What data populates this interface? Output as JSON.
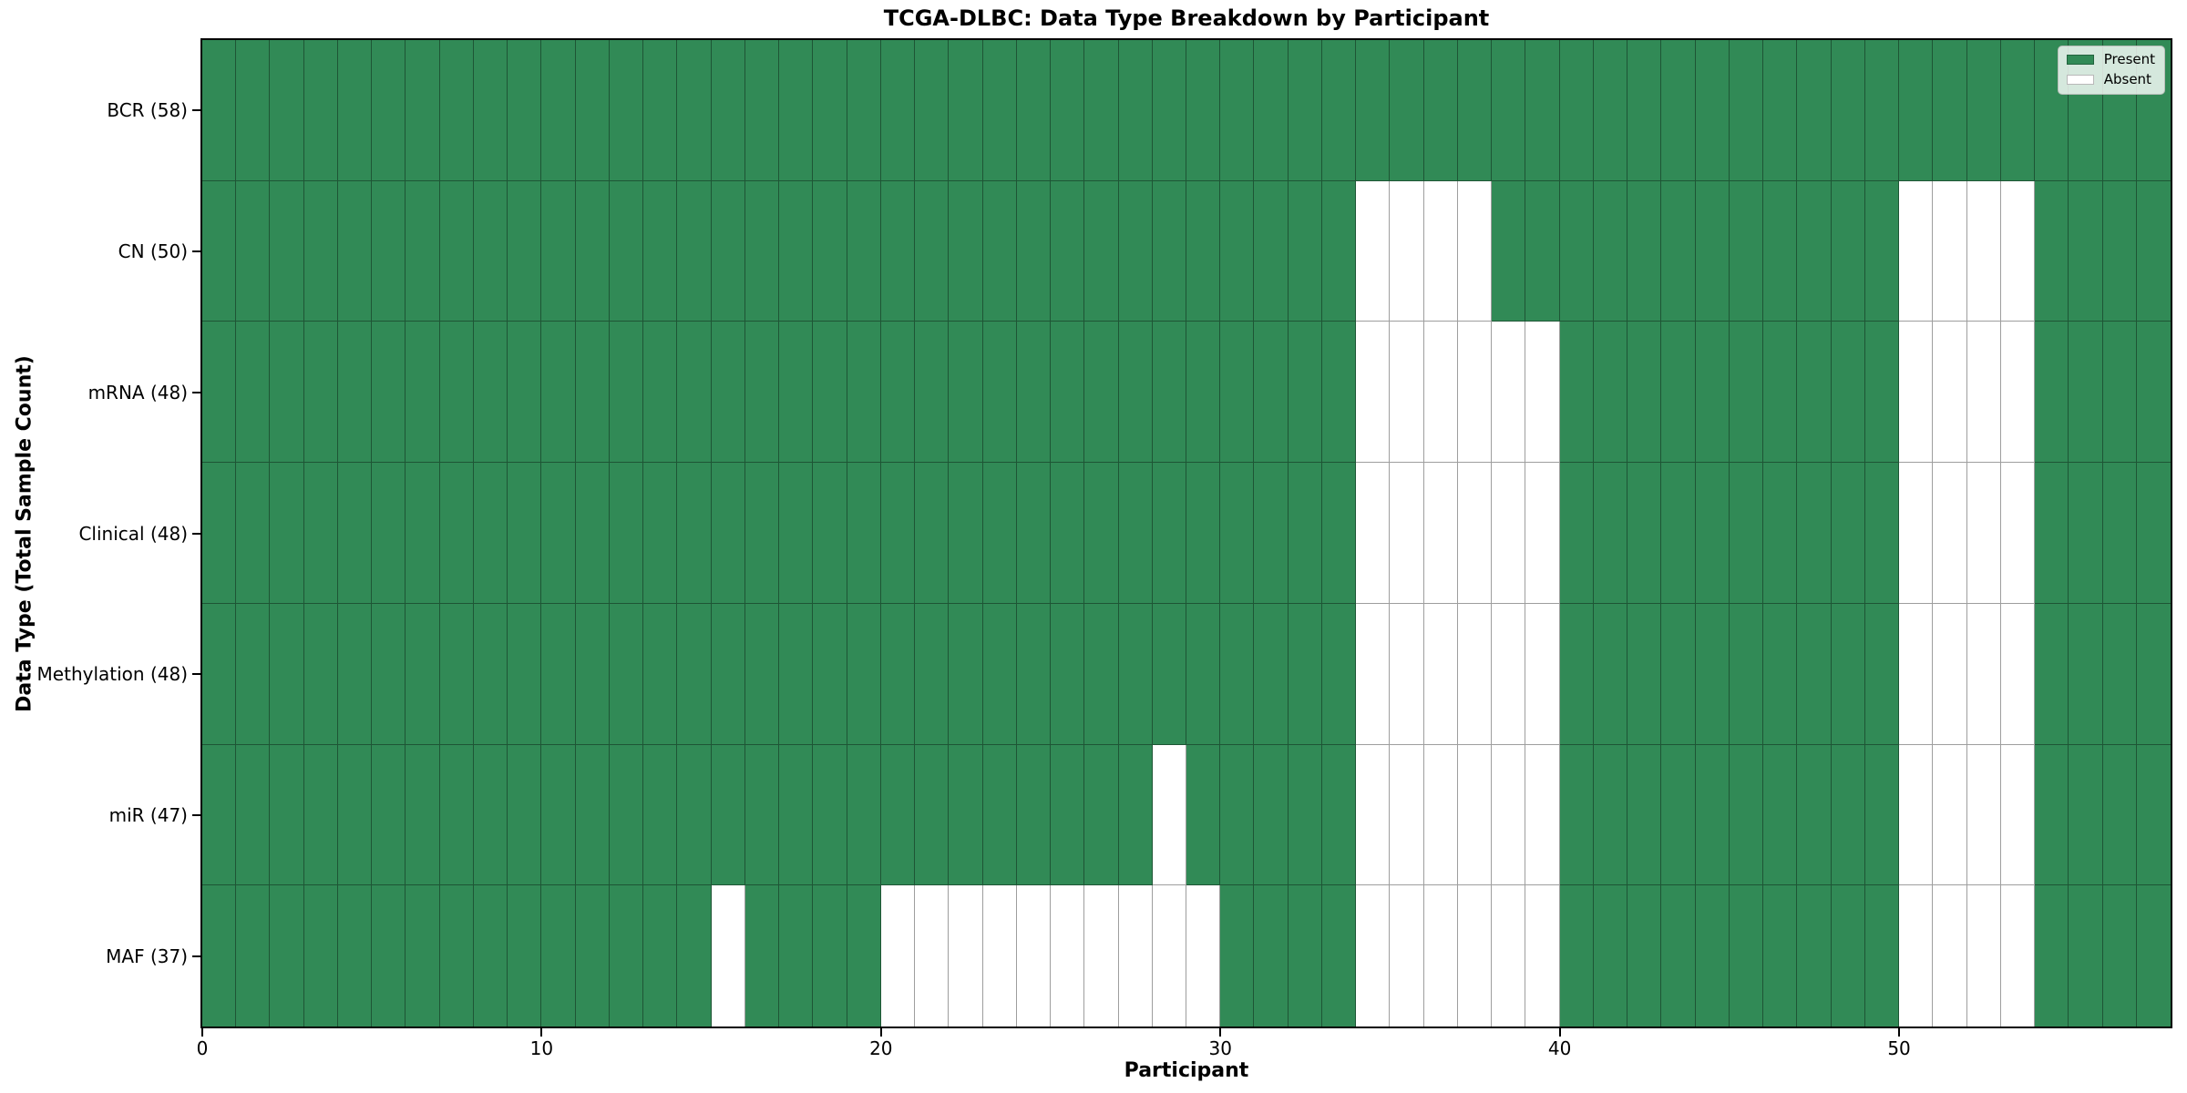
{
  "chart_data": {
    "type": "heatmap",
    "title": "TCGA-DLBC: Data Type Breakdown by Participant",
    "xlabel": "Participant",
    "ylabel": "Data Type (Total Sample Count)",
    "n_participants": 58,
    "x_ticks": [
      0,
      10,
      20,
      30,
      40,
      50
    ],
    "grid": true,
    "legend_position": "upper right",
    "legend": [
      {
        "label": "Present",
        "color": "#318a56"
      },
      {
        "label": "Absent",
        "color": "#ffffff"
      }
    ],
    "rows": [
      {
        "label": "BCR (58)",
        "data_type": "BCR",
        "total": 58,
        "absent_participants": []
      },
      {
        "label": "CN (50)",
        "data_type": "CN",
        "total": 50,
        "absent_participants": [
          34,
          35,
          36,
          37,
          50,
          51,
          52,
          53
        ]
      },
      {
        "label": "mRNA (48)",
        "data_type": "mRNA",
        "total": 48,
        "absent_participants": [
          34,
          35,
          36,
          37,
          38,
          39,
          50,
          51,
          52,
          53
        ]
      },
      {
        "label": "Clinical (48)",
        "data_type": "Clinical",
        "total": 48,
        "absent_participants": [
          34,
          35,
          36,
          37,
          38,
          39,
          50,
          51,
          52,
          53
        ]
      },
      {
        "label": "Methylation (48)",
        "data_type": "Methylation",
        "total": 48,
        "absent_participants": [
          34,
          35,
          36,
          37,
          38,
          39,
          50,
          51,
          52,
          53
        ]
      },
      {
        "label": "miR (47)",
        "data_type": "miR",
        "total": 47,
        "absent_participants": [
          28,
          34,
          35,
          36,
          37,
          38,
          39,
          50,
          51,
          52,
          53
        ]
      },
      {
        "label": "MAF (37)",
        "data_type": "MAF",
        "total": 37,
        "absent_participants": [
          15,
          20,
          21,
          22,
          23,
          24,
          25,
          26,
          27,
          28,
          29,
          34,
          35,
          36,
          37,
          38,
          39,
          50,
          51,
          52,
          53
        ]
      }
    ],
    "colors": {
      "present": "#318a56",
      "absent": "#ffffff",
      "grid_line": "rgba(0,0,0,0.38)",
      "spine": "#000000",
      "legend_bg": "rgba(255,255,255,0.8)"
    }
  }
}
